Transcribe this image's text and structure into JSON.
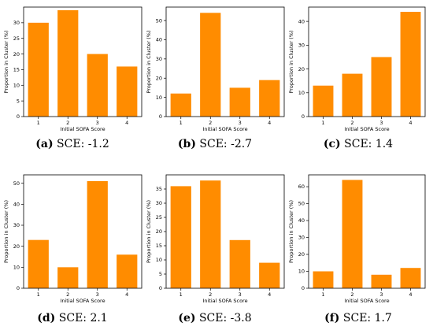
{
  "bar_color": "#ff8c00",
  "charts": [
    {
      "caption_tag": "(a)",
      "caption_text": "SCE: -1.2",
      "chart_data": {
        "type": "bar",
        "categories": [
          "1",
          "2",
          "3",
          "4"
        ],
        "values": [
          30,
          34,
          20,
          16
        ],
        "xlabel": "Initial SOFA Score",
        "ylabel": "Proportion in Cluster (%)",
        "ylim": [
          0,
          35
        ],
        "yticks": [
          0,
          5,
          10,
          15,
          20,
          25,
          30
        ]
      }
    },
    {
      "caption_tag": "(b)",
      "caption_text": "SCE: -2.7",
      "chart_data": {
        "type": "bar",
        "categories": [
          "1",
          "2",
          "3",
          "4"
        ],
        "values": [
          12,
          54,
          15,
          19
        ],
        "xlabel": "Initial SOFA Score",
        "ylabel": "Proportion in Cluster (%)",
        "ylim": [
          0,
          57
        ],
        "yticks": [
          0,
          10,
          20,
          30,
          40,
          50
        ]
      }
    },
    {
      "caption_tag": "(c)",
      "caption_text": "SCE: 1.4",
      "chart_data": {
        "type": "bar",
        "categories": [
          "1",
          "2",
          "3",
          "4"
        ],
        "values": [
          13,
          18,
          25,
          44
        ],
        "xlabel": "Initial SOFA Score",
        "ylabel": "Proportion in Cluster (%)",
        "ylim": [
          0,
          46
        ],
        "yticks": [
          0,
          10,
          20,
          30,
          40
        ]
      }
    },
    {
      "caption_tag": "(d)",
      "caption_text": "SCE: 2.1",
      "chart_data": {
        "type": "bar",
        "categories": [
          "1",
          "2",
          "3",
          "4"
        ],
        "values": [
          23,
          10,
          51,
          16
        ],
        "xlabel": "Initial SOFA Score",
        "ylabel": "Proportion in Cluster (%)",
        "ylim": [
          0,
          54
        ],
        "yticks": [
          0,
          10,
          20,
          30,
          40,
          50
        ]
      }
    },
    {
      "caption_tag": "(e)",
      "caption_text": "SCE: -3.8",
      "chart_data": {
        "type": "bar",
        "categories": [
          "1",
          "2",
          "3",
          "4"
        ],
        "values": [
          36,
          38,
          17,
          9
        ],
        "xlabel": "Initial SOFA Score",
        "ylabel": "Proportion in Cluster (%)",
        "ylim": [
          0,
          40
        ],
        "yticks": [
          0,
          5,
          10,
          15,
          20,
          25,
          30,
          35
        ]
      }
    },
    {
      "caption_tag": "(f)",
      "caption_text": "SCE: 1.7",
      "chart_data": {
        "type": "bar",
        "categories": [
          "1",
          "2",
          "3",
          "4"
        ],
        "values": [
          10,
          64,
          8,
          12
        ],
        "xlabel": "Initial SOFA Score",
        "ylabel": "Proportion in Cluster (%)",
        "ylim": [
          0,
          67
        ],
        "yticks": [
          0,
          10,
          20,
          30,
          40,
          50,
          60
        ]
      }
    }
  ]
}
